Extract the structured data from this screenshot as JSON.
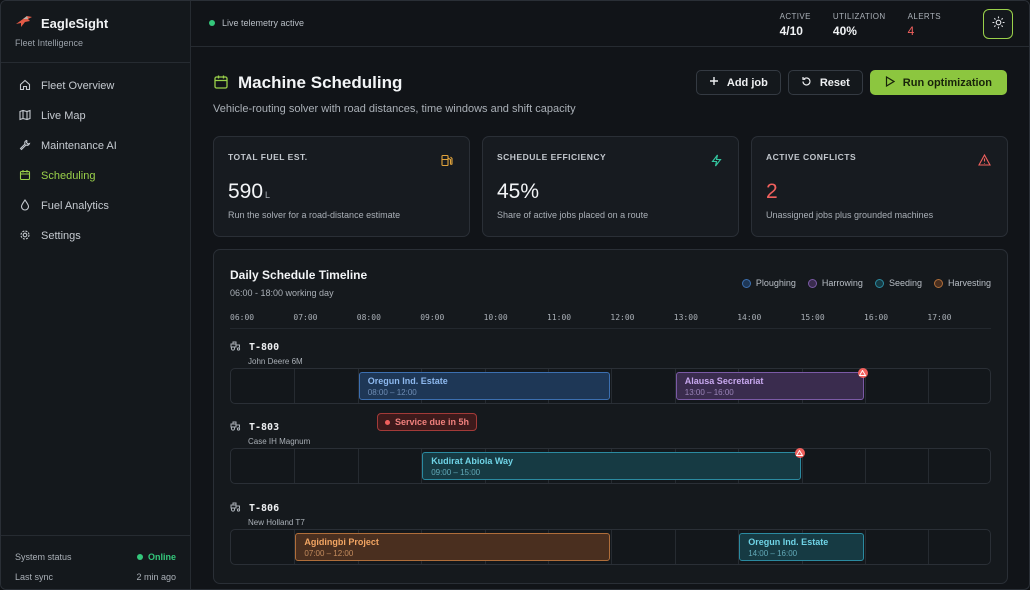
{
  "brand": {
    "title": "EagleSight",
    "subtitle": "Fleet Intelligence"
  },
  "nav": [
    {
      "label": "Fleet Overview",
      "icon": "home-icon",
      "active": false
    },
    {
      "label": "Live Map",
      "icon": "map-icon",
      "active": false
    },
    {
      "label": "Maintenance AI",
      "icon": "wrench-icon",
      "active": false
    },
    {
      "label": "Scheduling",
      "icon": "calendar-icon",
      "active": true
    },
    {
      "label": "Fuel Analytics",
      "icon": "droplet-icon",
      "active": false
    },
    {
      "label": "Settings",
      "icon": "gear-icon",
      "active": false
    }
  ],
  "footer": {
    "status_label": "System status",
    "status_value": "Online",
    "sync_label": "Last sync",
    "sync_value": "2 min ago"
  },
  "topbar": {
    "telemetry": "Live telemetry active",
    "stats": [
      {
        "label": "ACTIVE",
        "value": "4/10"
      },
      {
        "label": "UTILIZATION",
        "value": "40%"
      },
      {
        "label": "ALERTS",
        "value": "4"
      }
    ]
  },
  "page": {
    "title": "Machine Scheduling",
    "subtitle": "Vehicle-routing solver with road distances, time windows and shift capacity",
    "buttons": {
      "add": "Add job",
      "reset": "Reset",
      "run": "Run optimization"
    }
  },
  "cards": [
    {
      "label": "TOTAL FUEL EST.",
      "value": "590",
      "unit": "L",
      "desc": "Run the solver for a road-distance estimate",
      "icon": "fuel-pump-icon",
      "color": "#e0a33c"
    },
    {
      "label": "SCHEDULE EFFICIENCY",
      "value": "45%",
      "unit": "",
      "desc": "Share of active jobs placed on a route",
      "icon": "lightning-icon",
      "color": "#34c7a0"
    },
    {
      "label": "ACTIVE CONFLICTS",
      "value": "2",
      "unit": "",
      "desc": "Unassigned jobs plus grounded machines",
      "icon": "warning-icon",
      "color": "#f0605d"
    }
  ],
  "timeline": {
    "title": "Daily Schedule Timeline",
    "subtitle": "06:00 - 18:00 working day",
    "legend": [
      {
        "label": "Ploughing",
        "color": "#3c6fb0"
      },
      {
        "label": "Harrowing",
        "color": "#7b5aa6"
      },
      {
        "label": "Seeding",
        "color": "#2b8aa0"
      },
      {
        "label": "Harvesting",
        "color": "#b06e3a"
      }
    ],
    "hours": [
      "06:00",
      "07:00",
      "08:00",
      "09:00",
      "10:00",
      "11:00",
      "12:00",
      "13:00",
      "14:00",
      "15:00",
      "16:00",
      "17:00"
    ],
    "machines": [
      {
        "id": "T-800",
        "model": "John Deere 6M",
        "jobs": [
          {
            "name": "Oregun Ind. Estate",
            "time": "08:00 – 12:00",
            "type": "plough",
            "start": 8,
            "end": 12,
            "warning": false
          },
          {
            "name": "Alausa Secretariat",
            "time": "13:00 – 16:00",
            "type": "harrow",
            "start": 13,
            "end": 16,
            "warning": true
          }
        ]
      },
      {
        "id": "T-803",
        "model": "Case IH Magnum",
        "badge": "Service due in 5h",
        "jobs": [
          {
            "name": "Kudirat Abiola Way",
            "time": "09:00 – 15:00",
            "type": "seed",
            "start": 9,
            "end": 15,
            "warning": true
          }
        ]
      },
      {
        "id": "T-806",
        "model": "New Holland T7",
        "jobs": [
          {
            "name": "Agidingbi Project",
            "time": "07:00 – 12:00",
            "type": "harvest",
            "start": 7,
            "end": 12,
            "warning": false
          },
          {
            "name": "Oregun Ind. Estate",
            "time": "14:00 – 16:00",
            "type": "seed",
            "start": 14,
            "end": 16,
            "warning": false
          }
        ]
      }
    ]
  }
}
